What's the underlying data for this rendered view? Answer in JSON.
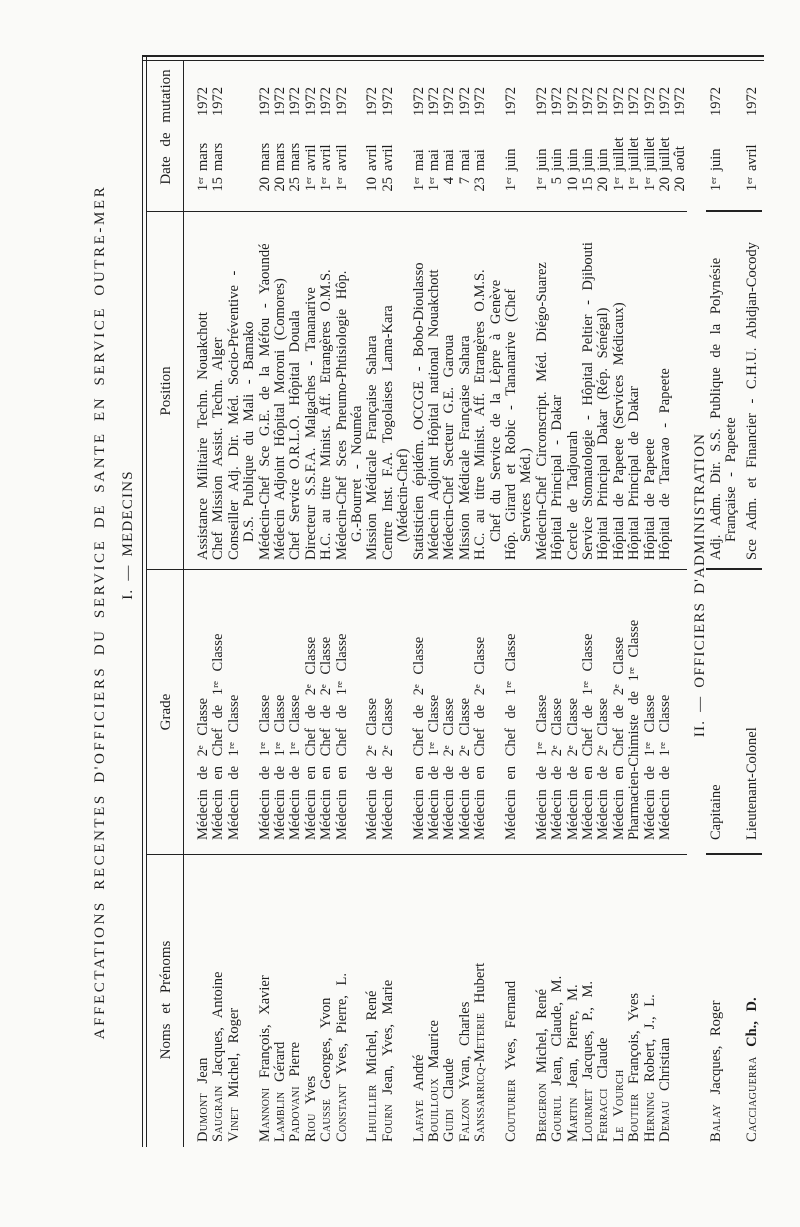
{
  "title": "AFFECTATIONS RECENTES D'OFFICIERS DU SERVICE DE SANTE EN SERVICE OUTRE-MER",
  "columns": {
    "names": "Noms et Prénoms",
    "grade": "Grade",
    "position": "Position",
    "date": "Date de mutation"
  },
  "medecins": {
    "heading": "I. — MEDECINS",
    "rows": [
      {
        "surname": "Dumont",
        "given": "Jean",
        "grade": "Médecin de 2ᵉ Classe",
        "position": [
          "Assistance Militaire Techn. Nouakchott"
        ],
        "date": {
          "day": "1ᵉʳ",
          "month": "mars",
          "year": "1972"
        }
      },
      {
        "surname": "Saugrain",
        "given": "Jacques, Antoine",
        "grade": "Médecin en Chef de 1ʳᵉ Classe",
        "position": [
          "Chef Mission Assist. Techn. Alger"
        ],
        "date": {
          "day": "15",
          "month": "mars",
          "year": "1972"
        }
      },
      {
        "surname": "Vinet",
        "given": "Michel, Roger",
        "grade": "Médecin de 1ʳᵉ Classe",
        "position": [
          "Conseiller Adj. Dir. Méd. Socio-Préventive -",
          "D.S. Publique du Mali - Bamako"
        ],
        "date": null
      },
      {
        "surname": "Mannoni",
        "given": "François, Xavier",
        "grade": "Médecin de 1ʳᵉ Classe",
        "position": [
          "Médecin-Chef Sce G.E. de la Méfou - Yaoundé"
        ],
        "date": {
          "day": "20",
          "month": "mars",
          "year": "1972"
        }
      },
      {
        "surname": "Lamblin",
        "given": "Gérard",
        "grade": "Médecin de 1ʳᵉ Classe",
        "position": [
          "Médecin Adjoint Hôpital Moroni (Comores)"
        ],
        "date": {
          "day": "20",
          "month": "mars",
          "year": "1972"
        }
      },
      {
        "surname": "Padovani",
        "given": "Pierre",
        "grade": "Médecin de 1ʳᵉ Classe",
        "position": [
          "Chef Service O.R.L.O. Hôpital Douala"
        ],
        "date": {
          "day": "25",
          "month": "mars",
          "year": "1972"
        }
      },
      {
        "surname": "Riou",
        "given": "Yves",
        "grade": "Médecin en Chef de 2ᵉ Classe",
        "position": [
          "Directeur S.S.F.A. Malgaches - Tananarive"
        ],
        "date": {
          "day": "1ᵉʳ",
          "month": "avril",
          "year": "1972"
        }
      },
      {
        "surname": "Causse",
        "given": "Georges, Yvon",
        "grade": "Médecin en Chef de 2ᵉ Classe",
        "position": [
          "H.C. au titre Minist. Aff. Etrangères O.M.S."
        ],
        "date": {
          "day": "1ᵉʳ",
          "month": "avril",
          "year": "1972"
        }
      },
      {
        "surname": "Constant",
        "given": "Yves, Pierre, L.",
        "grade": "Médecin en Chef de 1ʳᵉ Classe",
        "position": [
          "Médecin-Chef Sces Pneumo-Phtisiologie Hôp.",
          "G.-Bourret - Nouméa"
        ],
        "date": {
          "day": "1ᵉʳ",
          "month": "avril",
          "year": "1972"
        }
      },
      {
        "surname": "Lhuillier",
        "given": "Michel, René",
        "grade": "Médecin de 2ᵉ Classe",
        "position": [
          "Mission Médicale Française Sahara"
        ],
        "date": {
          "day": "10",
          "month": "avril",
          "year": "1972"
        }
      },
      {
        "surname": "Fourn",
        "given": "Jean, Yves, Marie",
        "grade": "Médecin de 2ᵉ Classe",
        "position": [
          "Centre Inst. F.A. Togolaises Lama-Kara",
          "(Médecin-Chef)"
        ],
        "date": {
          "day": "25",
          "month": "avril",
          "year": "1972"
        }
      },
      {
        "surname": "Lafaye",
        "given": "André",
        "grade": "Médecin en Chef de 2ᵉ Classe",
        "position": [
          "Statisticien épidém. OCCGE - Bobo-Dioulasso"
        ],
        "date": {
          "day": "1ᵉʳ",
          "month": "mai",
          "year": "1972"
        }
      },
      {
        "surname": "Bouilloux",
        "given": "Maurice",
        "grade": "Médecin de 1ʳᵉ Classe",
        "position": [
          "Médecin Adjoint Hôpital national Nouakchott"
        ],
        "date": {
          "day": "1ᵉʳ",
          "month": "mai",
          "year": "1972"
        }
      },
      {
        "surname": "Guidi",
        "given": "Claude",
        "grade": "Médecin de 2ᵉ Classe",
        "position": [
          "Médecin-Chef Secteur G.E. Garoua"
        ],
        "date": {
          "day": "4",
          "month": "mai",
          "year": "1972"
        }
      },
      {
        "surname": "Falzon",
        "given": "Yvan, Charles",
        "grade": "Médecin de 2ᵉ Classe",
        "position": [
          "Mission Médicale Française Sahara"
        ],
        "date": {
          "day": "7",
          "month": "mai",
          "year": "1972"
        }
      },
      {
        "surname": "Sanssarricq-Meterie",
        "given": "Hubert",
        "grade": "Médecin en Chef de 2ᵉ Classe",
        "position": [
          "H.C. au titre Minist. Aff. Etrangères O.M.S.",
          "Chef du Service de la Lèpre à Genève"
        ],
        "date": {
          "day": "23",
          "month": "mai",
          "year": "1972"
        }
      },
      {
        "surname": "Couturier",
        "given": "Yves, Fernand",
        "grade": "Médecin en Chef de 1ʳᵉ Classe",
        "position": [
          "Hôp. Girard et Robic - Tananarive (Chef",
          "Services Méd.)"
        ],
        "date": {
          "day": "1ᵉʳ",
          "month": "juin",
          "year": "1972"
        }
      },
      {
        "surname": "Bergeron",
        "given": "Michel, René",
        "grade": "Médecin de 1ʳᵉ Classe",
        "position": [
          "Médecin-Chef Circonscript. Méd. Diégo-Suarez"
        ],
        "date": {
          "day": "1ᵉʳ",
          "month": "juin",
          "year": "1972"
        }
      },
      {
        "surname": "Gourul",
        "given": "Jean, Claude, M.",
        "grade": "Médecin de 2ᵉ Classe",
        "position": [
          "Hôpital Principal - Dakar"
        ],
        "date": {
          "day": "5",
          "month": "juin",
          "year": "1972"
        }
      },
      {
        "surname": "Martin",
        "given": "Jean, Pierre, M.",
        "grade": "Médecin de 2ᵉ Classe",
        "position": [
          "Cercle de Tadjourah"
        ],
        "date": {
          "day": "10",
          "month": "juin",
          "year": "1972"
        }
      },
      {
        "surname": "Lourmet",
        "given": "Jacques, P., M.",
        "grade": "Médecin en Chef de 1ʳᵉ Classe",
        "position": [
          "Service Stomatologie - Hôpital Peltier - Djibouti"
        ],
        "date": {
          "day": "15",
          "month": "juin",
          "year": "1972"
        }
      },
      {
        "surname": "Ferracci",
        "given": "Claude",
        "grade": "Médecin de 2ᵉ Classe",
        "position": [
          "Hôpital Principal Dakar (Rép. Sénégal)"
        ],
        "date": {
          "day": "20",
          "month": "juin",
          "year": "1972"
        }
      },
      {
        "surname": "Le Vourch",
        "given": "",
        "grade": "Médecin en Chef de 2ᵉ Classe",
        "position": [
          "Hôpital de Papeete (Services Médicaux)"
        ],
        "date": {
          "day": "1ᵉʳ",
          "month": "juillet",
          "year": "1972"
        }
      },
      {
        "surname": "Boutier",
        "given": "François, Yves",
        "grade": "Pharmacien-Chimiste de 1ʳᵉ Classe",
        "position": [
          "Hôpital Principal de Dakar"
        ],
        "date": {
          "day": "1ᵉʳ",
          "month": "juillet",
          "year": "1972"
        }
      },
      {
        "surname": "Herning",
        "given": "Robert, J., L.",
        "grade": "Médecin de 1ʳᵉ Classe",
        "position": [
          "Hôpital de Papeete"
        ],
        "date": {
          "day": "1ᵉʳ",
          "month": "juillet",
          "year": "1972"
        }
      },
      {
        "surname": "Demau",
        "given": "Christian",
        "grade": "Médecin de 1ʳᵉ Classe",
        "position": [
          "Hôpital de Taravao - Papeete"
        ],
        "date": {
          "day": "20",
          "month": "juillet",
          "year": "1972"
        }
      },
      {
        "surname": "",
        "given": "",
        "grade": "",
        "position": [],
        "date": {
          "day": "20",
          "month": "août",
          "year": "1972"
        }
      }
    ]
  },
  "administration": {
    "heading": "II. — OFFICIERS D'ADMINISTRATION",
    "rows": [
      {
        "surname": "Balay",
        "given": "Jacques, Roger",
        "grade": "Capitaine",
        "position": [
          "Adj. Adm. Dir. S.S. Publique de la Polynésie",
          "Française - Papeete"
        ],
        "date": {
          "day": "1ᵉʳ",
          "month": "juin",
          "year": "1972"
        }
      },
      {
        "surname": "Cacciaguerra",
        "given": "Ch., D.",
        "grade": "Lieutenant-Colonel",
        "position": [
          "Sce Adm. et Financier - C.H.U. Abidjan-Cocody"
        ],
        "date": {
          "day": "1ᵉʳ",
          "month": "avril",
          "year": "1972"
        }
      }
    ]
  }
}
